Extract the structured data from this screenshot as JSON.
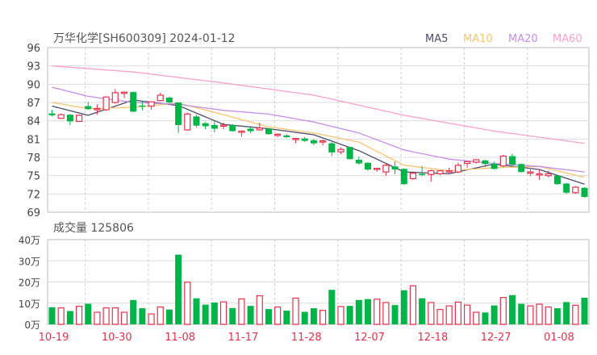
{
  "title": "万华化学[SH600309] 2024-01-12",
  "volume_title": "成交量 125806",
  "legend": [
    {
      "label": "MA5",
      "color": "#4b4a6b"
    },
    {
      "label": "MA10",
      "color": "#f7c470"
    },
    {
      "label": "MA20",
      "color": "#c48ce8"
    },
    {
      "label": "MA60",
      "color": "#f9a0cc"
    }
  ],
  "colors": {
    "up": "#e6304a",
    "down": "#00b548",
    "xlabel": "#e6304a",
    "grid": "#dcdcdc"
  },
  "chart_data": [
    {
      "type": "candlestick",
      "title": "万华化学[SH600309] 2024-01-12",
      "ylim": [
        69,
        96
      ],
      "yticks": [
        69,
        72,
        75,
        78,
        81,
        84,
        87,
        90,
        93,
        96
      ],
      "xtick_labels": [
        {
          "index": 0,
          "label": "10-19"
        },
        {
          "index": 7,
          "label": "10-30"
        },
        {
          "index": 14,
          "label": "11-08"
        },
        {
          "index": 21,
          "label": "11-17"
        },
        {
          "index": 28,
          "label": "11-28"
        },
        {
          "index": 35,
          "label": "12-07"
        },
        {
          "index": 42,
          "label": "12-18"
        },
        {
          "index": 49,
          "label": "12-27"
        },
        {
          "index": 56,
          "label": "01-08"
        }
      ],
      "ohlc": [
        [
          85.2,
          85.8,
          84.7,
          84.9
        ],
        [
          84.4,
          85.2,
          84.3,
          85.0
        ],
        [
          85.0,
          85.1,
          83.3,
          83.9
        ],
        [
          83.9,
          85.0,
          83.8,
          84.9
        ],
        [
          86.4,
          87.1,
          85.8,
          85.9
        ],
        [
          86.0,
          86.7,
          85.0,
          86.0
        ],
        [
          85.8,
          88.0,
          85.6,
          87.9
        ],
        [
          87.0,
          89.2,
          86.8,
          88.6
        ],
        [
          88.5,
          88.8,
          87.7,
          88.7
        ],
        [
          88.7,
          88.8,
          85.4,
          85.5
        ],
        [
          86.5,
          87.2,
          85.7,
          86.3
        ],
        [
          86.4,
          87.2,
          85.8,
          87.1
        ],
        [
          87.3,
          88.6,
          87.2,
          88.2
        ],
        [
          87.8,
          88.0,
          86.8,
          87.0
        ],
        [
          87.0,
          87.0,
          82.0,
          83.3
        ],
        [
          82.5,
          85.3,
          82.4,
          85.1
        ],
        [
          84.7,
          85.0,
          82.9,
          83.2
        ],
        [
          83.6,
          83.8,
          82.6,
          83.1
        ],
        [
          83.3,
          83.9,
          82.1,
          82.7
        ],
        [
          83.1,
          83.7,
          82.6,
          83.3
        ],
        [
          83.3,
          83.4,
          82.2,
          82.3
        ],
        [
          82.2,
          82.4,
          81.4,
          82.3
        ],
        [
          82.7,
          82.9,
          82.0,
          82.3
        ],
        [
          82.5,
          83.7,
          82.4,
          82.8
        ],
        [
          82.7,
          82.8,
          81.7,
          81.8
        ],
        [
          81.7,
          81.9,
          81.3,
          81.8
        ],
        [
          81.6,
          81.8,
          81.2,
          81.3
        ],
        [
          81.0,
          81.2,
          80.3,
          81.1
        ],
        [
          81.1,
          81.3,
          80.5,
          80.7
        ],
        [
          80.8,
          81.0,
          80.0,
          80.3
        ],
        [
          80.5,
          80.9,
          80.0,
          80.7
        ],
        [
          80.3,
          80.5,
          78.2,
          78.8
        ],
        [
          78.9,
          79.6,
          78.5,
          79.3
        ],
        [
          79.7,
          79.7,
          77.7,
          77.7
        ],
        [
          77.6,
          78.1,
          76.8,
          77.0
        ],
        [
          77.1,
          77.2,
          75.8,
          76.0
        ],
        [
          76.0,
          76.3,
          75.6,
          76.2
        ],
        [
          75.6,
          76.9,
          75.0,
          76.7
        ],
        [
          76.5,
          77.3,
          75.2,
          76.0
        ],
        [
          76.1,
          76.2,
          73.5,
          73.6
        ],
        [
          74.5,
          75.7,
          74.3,
          75.4
        ],
        [
          75.3,
          76.6,
          74.9,
          75.1
        ],
        [
          75.2,
          76.0,
          74.0,
          75.8
        ],
        [
          75.3,
          75.9,
          75.1,
          75.8
        ],
        [
          75.6,
          76.3,
          75.4,
          75.8
        ],
        [
          75.6,
          77.1,
          75.4,
          76.7
        ],
        [
          77.0,
          77.3,
          76.3,
          77.3
        ],
        [
          77.2,
          77.7,
          77.0,
          77.6
        ],
        [
          77.5,
          77.6,
          76.4,
          76.9
        ],
        [
          76.9,
          77.3,
          76.0,
          76.1
        ],
        [
          76.6,
          78.4,
          76.4,
          78.2
        ],
        [
          78.2,
          78.6,
          76.7,
          76.8
        ],
        [
          76.9,
          77.0,
          75.5,
          75.6
        ],
        [
          75.5,
          76.0,
          74.9,
          75.6
        ],
        [
          75.3,
          76.0,
          74.3,
          75.3
        ],
        [
          75.0,
          75.8,
          74.7,
          75.3
        ],
        [
          75.0,
          75.1,
          73.5,
          73.6
        ],
        [
          73.7,
          73.8,
          72.0,
          72.2
        ],
        [
          72.2,
          73.3,
          72.0,
          73.1
        ],
        [
          73.0,
          73.1,
          71.4,
          71.5
        ]
      ],
      "ma": {
        "MA5": [
          [
            0,
            86.4
          ],
          [
            4,
            84.9
          ],
          [
            9,
            87.4
          ],
          [
            14,
            86.5
          ],
          [
            19,
            83.4
          ],
          [
            24,
            82.7
          ],
          [
            29,
            81.7
          ],
          [
            34,
            79.1
          ],
          [
            39,
            75.6
          ],
          [
            44,
            75.3
          ],
          [
            49,
            76.9
          ],
          [
            54,
            76.0
          ],
          [
            59,
            73.6
          ]
        ],
        "MA10": [
          [
            0,
            87.0
          ],
          [
            4,
            86.0
          ],
          [
            9,
            86.2
          ],
          [
            14,
            86.9
          ],
          [
            19,
            85.0
          ],
          [
            24,
            83.0
          ],
          [
            29,
            82.0
          ],
          [
            34,
            80.5
          ],
          [
            39,
            76.7
          ],
          [
            44,
            75.8
          ],
          [
            49,
            76.3
          ],
          [
            54,
            76.5
          ],
          [
            59,
            74.7
          ]
        ],
        "MA20": [
          [
            0,
            89.5
          ],
          [
            4,
            88.0
          ],
          [
            9,
            87.0
          ],
          [
            14,
            86.7
          ],
          [
            19,
            85.7
          ],
          [
            24,
            85.1
          ],
          [
            29,
            83.8
          ],
          [
            34,
            82.0
          ],
          [
            39,
            79.2
          ],
          [
            44,
            77.7
          ],
          [
            49,
            77.0
          ],
          [
            54,
            76.5
          ],
          [
            59,
            75.6
          ]
        ],
        "MA60": [
          [
            0,
            93.0
          ],
          [
            9,
            92.0
          ],
          [
            19,
            90.2
          ],
          [
            29,
            88.2
          ],
          [
            39,
            84.9
          ],
          [
            49,
            82.3
          ],
          [
            59,
            80.3
          ]
        ]
      }
    },
    {
      "type": "bar",
      "title": "成交量 125806",
      "unit": "万",
      "ylim": [
        0,
        40
      ],
      "yticks": [
        {
          "v": 0,
          "label": "0万"
        },
        {
          "v": 10,
          "label": "10万"
        },
        {
          "v": 20,
          "label": "20万"
        },
        {
          "v": 30,
          "label": "30万"
        },
        {
          "v": 40,
          "label": "40万"
        }
      ],
      "values": [
        8.1,
        7.8,
        6.3,
        8.5,
        9.7,
        5.7,
        7.8,
        7.8,
        5.7,
        11.5,
        7.6,
        4.9,
        8.2,
        7.0,
        32.9,
        19.9,
        12.3,
        9.3,
        10.3,
        10.6,
        7.7,
        12.0,
        8.7,
        13.5,
        7.2,
        8.2,
        6.5,
        12.4,
        5.9,
        7.6,
        6.6,
        16.3,
        8.4,
        8.7,
        11.5,
        11.9,
        11.9,
        10.3,
        9.1,
        16.1,
        18.2,
        12.3,
        10.3,
        7.0,
        8.7,
        10.5,
        9.1,
        5.7,
        5.6,
        8.9,
        12.7,
        13.8,
        9.7,
        8.7,
        9.5,
        8.2,
        7.6,
        10.5,
        9.0,
        12.58
      ]
    }
  ]
}
